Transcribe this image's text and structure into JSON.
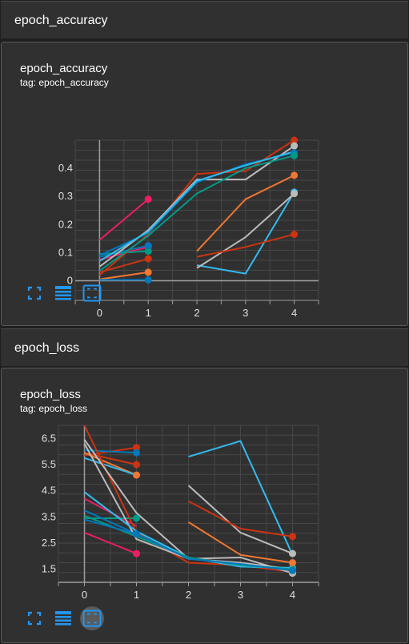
{
  "sections": [
    {
      "header": "epoch_accuracy",
      "title": "epoch_accuracy",
      "tag": "tag: epoch_accuracy"
    },
    {
      "header": "epoch_loss",
      "title": "epoch_loss",
      "tag": "tag: epoch_loss"
    }
  ],
  "toolbar": {
    "icons": [
      "fullscreen-icon",
      "data-table-icon",
      "fit-domain-icon"
    ],
    "accent_color": "#2196f3"
  },
  "chart_data": [
    {
      "type": "line",
      "title": "epoch_accuracy",
      "xlabel": "",
      "ylabel": "",
      "x_ticks": [
        "0",
        "1",
        "2",
        "3",
        "4"
      ],
      "y_ticks": [
        "0",
        "0.1",
        "0.2",
        "0.3",
        "0.4"
      ],
      "xlim": [
        -0.5,
        4.5
      ],
      "ylim": [
        -0.07,
        0.5
      ],
      "grid": true,
      "series": [
        {
          "color": "#e91e63",
          "points": [
            [
              0,
              0.145
            ],
            [
              1,
              0.29
            ]
          ],
          "end_marker": true
        },
        {
          "color": "#e91e63",
          "points": [
            [
              0,
              0.075
            ],
            [
              1,
              0.12
            ]
          ],
          "end_marker": true
        },
        {
          "color": "#cc3311",
          "points": [
            [
              0,
              0.03
            ],
            [
              1,
              0.078
            ]
          ],
          "end_marker": true
        },
        {
          "color": "#ee7733",
          "points": [
            [
              0,
              0.005
            ],
            [
              1,
              0.03
            ]
          ],
          "end_marker": true
        },
        {
          "color": "#0077bb",
          "points": [
            [
              0,
              0.003
            ],
            [
              1,
              0.003
            ]
          ],
          "end_marker": true
        },
        {
          "color": "#009988",
          "points": [
            [
              0,
              0.095
            ],
            [
              1,
              0.105
            ]
          ],
          "end_marker": true
        },
        {
          "color": "#0077bb",
          "points": [
            [
              0,
              0.085
            ],
            [
              1,
              0.125
            ]
          ],
          "end_marker": true
        },
        {
          "color": "#cc3311",
          "points": [
            [
              0,
              0.02
            ],
            [
              1,
              0.165
            ],
            [
              2,
              0.38
            ],
            [
              3,
              0.39
            ],
            [
              4,
              0.5
            ]
          ],
          "end_marker": true
        },
        {
          "color": "#bbbbbb",
          "points": [
            [
              0,
              0.05
            ],
            [
              1,
              0.18
            ],
            [
              2,
              0.36
            ],
            [
              3,
              0.36
            ],
            [
              4,
              0.48
            ]
          ],
          "end_marker": true
        },
        {
          "color": "#0077bb",
          "points": [
            [
              0,
              0.09
            ],
            [
              1,
              0.17
            ],
            [
              2,
              0.35
            ],
            [
              3,
              0.415
            ],
            [
              4,
              0.455
            ]
          ],
          "end_marker": true
        },
        {
          "color": "#33bbee",
          "points": [
            [
              0,
              0.07
            ],
            [
              1,
              0.175
            ],
            [
              2,
              0.355
            ],
            [
              3,
              0.41
            ],
            [
              4,
              0.46
            ]
          ],
          "end_marker": false
        },
        {
          "color": "#009988",
          "points": [
            [
              0,
              0.035
            ],
            [
              1,
              0.16
            ],
            [
              2,
              0.31
            ],
            [
              3,
              0.4
            ],
            [
              4,
              0.445
            ]
          ],
          "end_marker": true
        },
        {
          "color": "#ee7733",
          "points": [
            [
              2,
              0.105
            ],
            [
              3,
              0.29
            ],
            [
              4,
              0.375
            ]
          ],
          "end_marker": true
        },
        {
          "color": "#33bbee",
          "points": [
            [
              2,
              0.055
            ],
            [
              3,
              0.025
            ],
            [
              4,
              0.315
            ]
          ],
          "end_marker": true
        },
        {
          "color": "#bbbbbb",
          "points": [
            [
              2,
              0.045
            ],
            [
              3,
              0.155
            ],
            [
              4,
              0.31
            ]
          ],
          "end_marker": true
        },
        {
          "color": "#cc3311",
          "points": [
            [
              2,
              0.085
            ],
            [
              3,
              0.12
            ],
            [
              4,
              0.165
            ]
          ],
          "end_marker": true
        }
      ]
    },
    {
      "type": "line",
      "title": "epoch_loss",
      "xlabel": "",
      "ylabel": "",
      "x_ticks": [
        "0",
        "1",
        "2",
        "3",
        "4"
      ],
      "y_ticks": [
        "1.5",
        "2.5",
        "3.5",
        "4.5",
        "5.5",
        "6.5"
      ],
      "xlim": [
        -0.5,
        4.5
      ],
      "ylim": [
        1.0,
        7.0
      ],
      "grid": true,
      "series": [
        {
          "color": "#cc3311",
          "points": [
            [
              0,
              5.85
            ],
            [
              1,
              6.15
            ]
          ],
          "end_marker": true
        },
        {
          "color": "#0077bb",
          "points": [
            [
              0,
              6.05
            ],
            [
              1,
              5.95
            ]
          ],
          "end_marker": true
        },
        {
          "color": "#cc3311",
          "points": [
            [
              0,
              5.95
            ],
            [
              1,
              5.5
            ]
          ],
          "end_marker": true
        },
        {
          "color": "#ee7733",
          "points": [
            [
              0,
              5.95
            ],
            [
              1,
              5.1
            ]
          ],
          "end_marker": true
        },
        {
          "color": "#33bbee",
          "points": [
            [
              0,
              5.75
            ],
            [
              1,
              5.1
            ]
          ],
          "end_marker": false
        },
        {
          "color": "#e91e63",
          "points": [
            [
              0,
              2.9
            ],
            [
              1,
              2.1
            ]
          ],
          "end_marker": true
        },
        {
          "color": "#e91e63",
          "points": [
            [
              0,
              4.2
            ],
            [
              1,
              3.15
            ]
          ],
          "end_marker": false
        },
        {
          "color": "#009988",
          "points": [
            [
              0,
              3.45
            ],
            [
              1,
              3.45
            ]
          ],
          "end_marker": true
        },
        {
          "color": "#0077bb",
          "points": [
            [
              0,
              3.75
            ],
            [
              1,
              2.85
            ]
          ],
          "end_marker": true
        },
        {
          "color": "#cc3311",
          "points": [
            [
              0,
              7.0
            ],
            [
              1,
              2.9
            ],
            [
              2,
              1.75
            ],
            [
              3,
              1.65
            ],
            [
              4,
              1.4
            ]
          ],
          "end_marker": true
        },
        {
          "color": "#bbbbbb",
          "points": [
            [
              0,
              6.45
            ],
            [
              1,
              3.65
            ],
            [
              2,
              1.9
            ],
            [
              3,
              1.95
            ],
            [
              4,
              1.35
            ]
          ],
          "end_marker": true
        },
        {
          "color": "#bbbbbb",
          "points": [
            [
              0,
              6.3
            ],
            [
              1,
              2.65
            ],
            [
              2,
              1.9
            ],
            [
              3,
              1.75
            ],
            [
              4,
              1.5
            ]
          ],
          "end_marker": false
        },
        {
          "color": "#33bbee",
          "points": [
            [
              0,
              4.45
            ],
            [
              1,
              2.95
            ],
            [
              2,
              1.95
            ],
            [
              3,
              1.6
            ],
            [
              4,
              1.55
            ]
          ],
          "end_marker": true
        },
        {
          "color": "#009988",
          "points": [
            [
              0,
              3.55
            ],
            [
              1,
              2.75
            ],
            [
              2,
              1.95
            ],
            [
              3,
              1.65
            ],
            [
              4,
              1.5
            ]
          ],
          "end_marker": true
        },
        {
          "color": "#0077bb",
          "points": [
            [
              0,
              3.4
            ],
            [
              1,
              2.85
            ],
            [
              2,
              1.9
            ],
            [
              3,
              1.7
            ],
            [
              4,
              1.45
            ]
          ],
          "end_marker": true
        },
        {
          "color": "#33bbee",
          "points": [
            [
              2,
              5.8
            ],
            [
              3,
              6.4
            ],
            [
              4,
              2.05
            ]
          ],
          "end_marker": false
        },
        {
          "color": "#bbbbbb",
          "points": [
            [
              2,
              4.7
            ],
            [
              3,
              2.9
            ],
            [
              4,
              2.1
            ]
          ],
          "end_marker": true
        },
        {
          "color": "#cc3311",
          "points": [
            [
              2,
              4.1
            ],
            [
              3,
              3.05
            ],
            [
              4,
              2.75
            ]
          ],
          "end_marker": true
        },
        {
          "color": "#ee7733",
          "points": [
            [
              2,
              3.3
            ],
            [
              3,
              2.05
            ],
            [
              4,
              1.75
            ]
          ],
          "end_marker": true
        }
      ]
    }
  ]
}
